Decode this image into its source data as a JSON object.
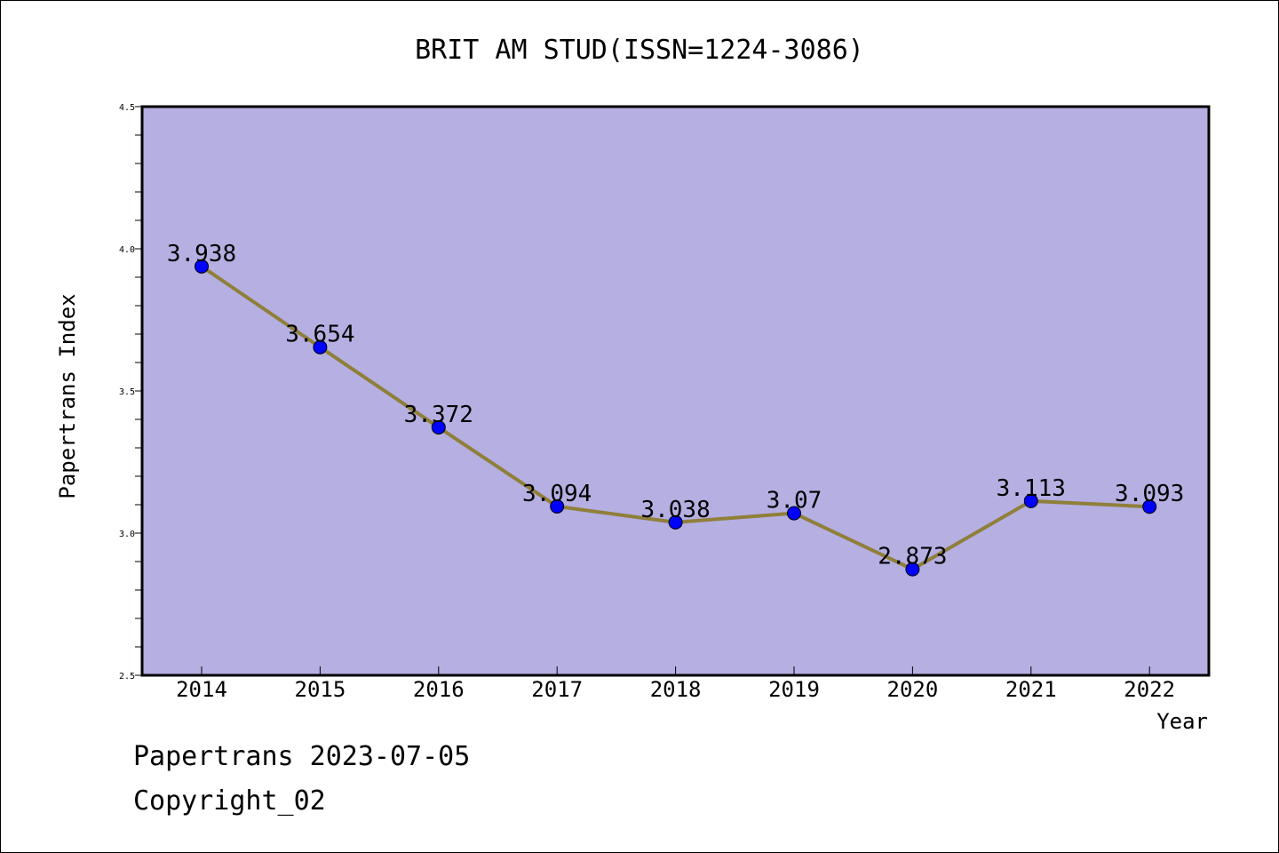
{
  "chart_data": {
    "type": "line",
    "title": "BRIT AM STUD(ISSN=1224-3086)",
    "xlabel": "Year",
    "ylabel": "Papertrans Index",
    "categories": [
      "2014",
      "2015",
      "2016",
      "2017",
      "2018",
      "2019",
      "2020",
      "2021",
      "2022"
    ],
    "values": [
      3.938,
      3.654,
      3.372,
      3.094,
      3.038,
      3.07,
      2.873,
      3.113,
      3.093
    ],
    "data_labels": [
      "3.938",
      "3.654",
      "3.372",
      "3.094",
      "3.038",
      "3.07",
      "2.873",
      "3.113",
      "3.093"
    ],
    "ylim": [
      2.5,
      4.5
    ],
    "yticks": [
      "2.5",
      "3.0",
      "3.5",
      "4.0",
      "4.5"
    ],
    "grid": false,
    "legend": "none",
    "colors": {
      "plot_background": "#b5afe2",
      "line": "#8f7f3a",
      "marker": "#0000ff"
    }
  },
  "footer": {
    "date_line": "Papertrans 2023-07-05",
    "copyright_line": "Copyright_02"
  }
}
